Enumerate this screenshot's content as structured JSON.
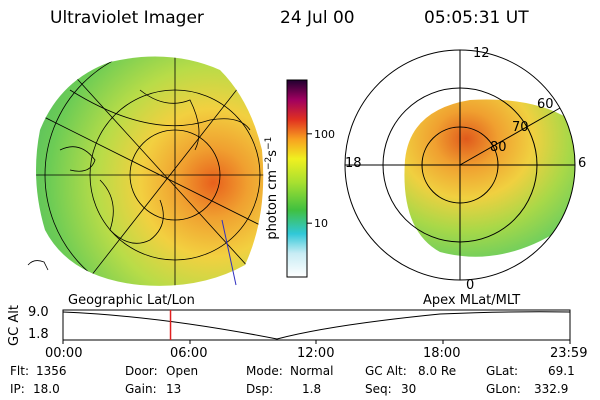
{
  "header": {
    "instrument": "Ultraviolet Imager",
    "date": "24 Jul 00",
    "time": "05:05:31 UT"
  },
  "colorbar": {
    "unit": "photon cm",
    "unit_sup1": "−2",
    "unit_mid": "s",
    "unit_sup2": "−1",
    "tick_labels": [
      "100",
      "10"
    ],
    "ticks": [
      100,
      10
    ]
  },
  "polar_plot": {
    "mlt_labels": [
      "12",
      "18",
      "6",
      "0"
    ],
    "mlat_labels": [
      "60",
      "70",
      "80"
    ]
  },
  "geo_caption": "Geographic Lat/Lon",
  "apex_caption": "Apex MLat/MLT",
  "altitude_plot": {
    "axis_label": "GC Alt",
    "y_labels": [
      "9.0",
      "1.8"
    ],
    "x_labels": [
      "00:00",
      "06:00",
      "12:00",
      "18:00",
      "23:59"
    ],
    "current_time_marker_hours": 5.09
  },
  "info": {
    "flt_label": "Flt:",
    "flt_value": "1356",
    "ip_label": "IP:",
    "ip_value": "18.0",
    "door_label": "Door:",
    "door_value": "Open",
    "gain_label": "Gain:",
    "gain_value": "13",
    "mode_label": "Mode:",
    "mode_value": "Normal",
    "dsp_label": "Dsp:",
    "dsp_value": "1.8",
    "gcalt_label": "GC Alt:",
    "gcalt_value": "8.0 Re",
    "seq_label": "Seq:",
    "seq_value": "30",
    "glat_label": "GLat:",
    "glat_value": "69.1",
    "glon_label": "GLon:",
    "glon_value": "332.9"
  },
  "colors": {
    "aurora_bright": "#e8601c",
    "aurora_mid": "#f2c23a",
    "aurora_low": "#9ad245",
    "aurora_faint": "#4cc86a",
    "marker": "#e02020"
  }
}
